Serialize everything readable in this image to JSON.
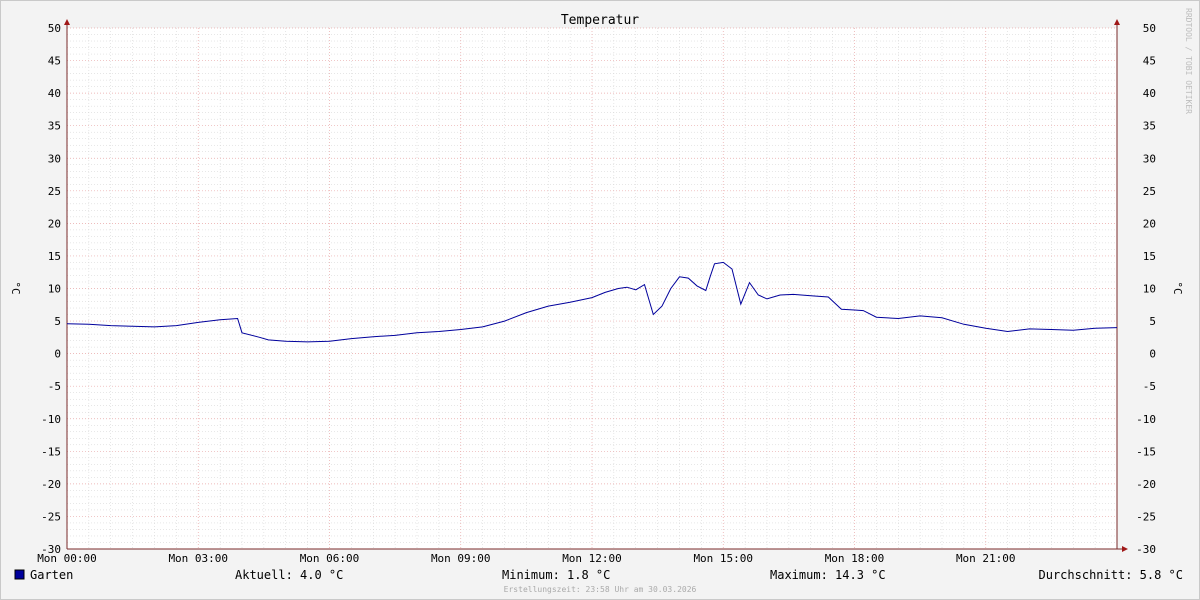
{
  "chart_data": {
    "type": "line",
    "title": "Temperatur",
    "ylabel": "°C",
    "ylabel_right": "°C",
    "ylim": [
      -30,
      50
    ],
    "y_ticks": [
      "50",
      "45",
      "40",
      "35",
      "30",
      "25",
      "20",
      "15",
      "10",
      "5",
      "0",
      "-5",
      "-10",
      "-15",
      "-20",
      "-25",
      "-30"
    ],
    "x_range_hours": [
      0,
      24
    ],
    "x_ticks": [
      "Mon 00:00",
      "Mon 03:00",
      "Mon 06:00",
      "Mon 09:00",
      "Mon 12:00",
      "Mon 15:00",
      "Mon 18:00",
      "Mon 21:00"
    ],
    "grid": true,
    "series": [
      {
        "name": "Garten",
        "color": "#00009c",
        "x": [
          0.0,
          0.5,
          1.0,
          1.5,
          2.0,
          2.5,
          3.0,
          3.5,
          3.9,
          4.0,
          4.4,
          4.6,
          5.0,
          5.5,
          6.0,
          6.5,
          7.0,
          7.5,
          8.0,
          8.5,
          9.0,
          9.5,
          10.0,
          10.5,
          11.0,
          11.5,
          12.0,
          12.3,
          12.6,
          12.8,
          13.0,
          13.2,
          13.4,
          13.6,
          13.8,
          14.0,
          14.2,
          14.4,
          14.6,
          14.7,
          14.8,
          15.0,
          15.2,
          15.4,
          15.6,
          15.8,
          16.0,
          16.3,
          16.6,
          17.0,
          17.4,
          17.7,
          18.0,
          18.2,
          18.5,
          19.0,
          19.5,
          20.0,
          20.5,
          21.0,
          21.5,
          22.0,
          22.5,
          23.0,
          23.5,
          24.0
        ],
        "values": [
          4.6,
          4.5,
          4.3,
          4.2,
          4.1,
          4.3,
          4.8,
          5.2,
          5.4,
          3.2,
          2.5,
          2.1,
          1.9,
          1.8,
          1.9,
          2.3,
          2.6,
          2.8,
          3.2,
          3.4,
          3.7,
          4.1,
          5.0,
          6.3,
          7.3,
          7.9,
          8.6,
          9.4,
          10.0,
          10.2,
          9.8,
          10.6,
          6.0,
          7.3,
          10.0,
          11.8,
          11.6,
          10.4,
          9.7,
          11.8,
          13.8,
          14.0,
          13.0,
          7.6,
          10.9,
          9.0,
          8.4,
          9.0,
          9.1,
          8.9,
          8.7,
          6.8,
          6.7,
          6.6,
          5.6,
          5.4,
          5.8,
          5.5,
          4.5,
          3.9,
          3.4,
          3.8,
          3.7,
          3.6,
          3.9,
          4.0
        ]
      }
    ]
  },
  "legend": {
    "series_label": "Garten",
    "current": "Aktuell: 4.0 °C",
    "minimum": "Minimum: 1.8 °C",
    "maximum": "Maximum: 14.3 °C",
    "average": "Durchschnitt: 5.8 °C"
  },
  "footer": {
    "created": "Erstellungszeit: 23:58 Uhr am 30.03.2026"
  },
  "watermark": "RRDTOOL / TOBI OETIKER",
  "colors": {
    "background": "#f3f3f3",
    "line": "#00009c",
    "major_grid": "#e8a6a6",
    "minor_grid": "#cfcfcf",
    "axis": "#7a2a2a",
    "arrow": "#a01818"
  }
}
